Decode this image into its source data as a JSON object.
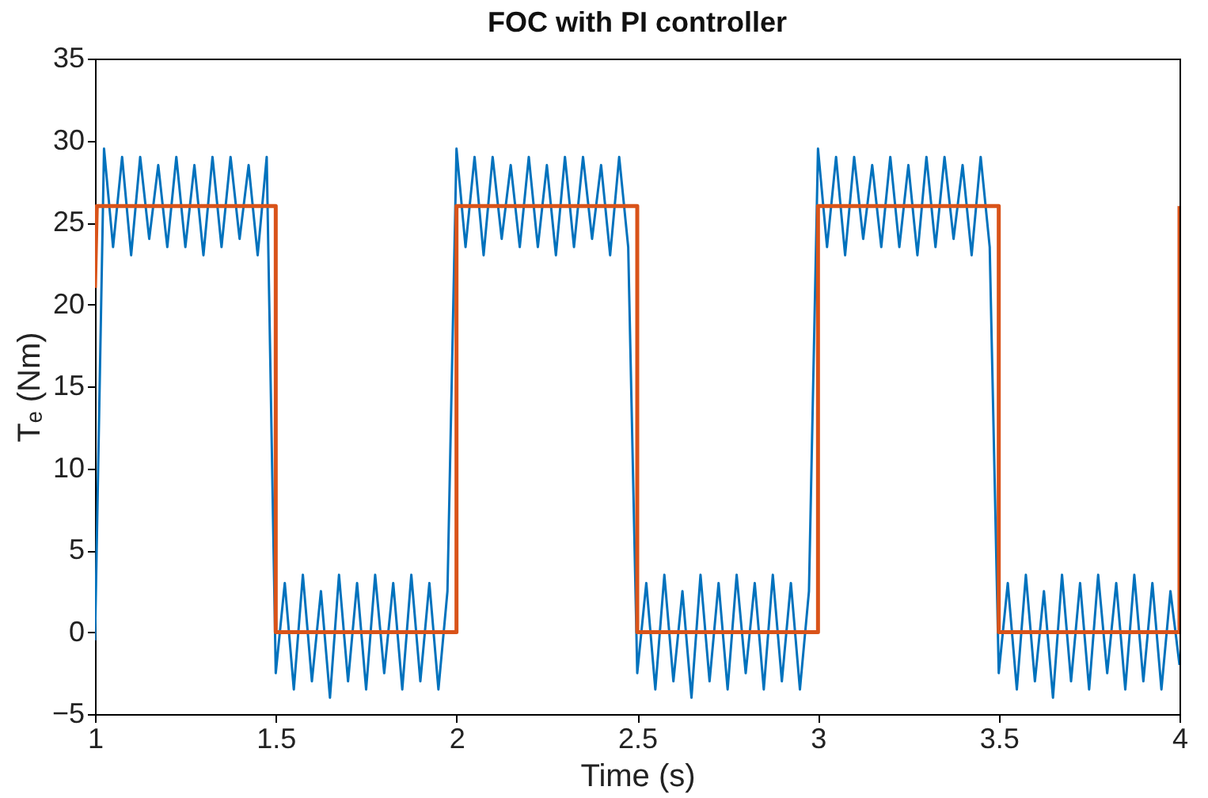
{
  "chart_data": {
    "type": "line",
    "title": "FOC with PI controller",
    "xlabel": "Time (s)",
    "ylabel": "Tₑ (Nm)",
    "xlim": [
      1,
      4
    ],
    "xticks": [
      1,
      1.5,
      2,
      2.5,
      3,
      3.5,
      4
    ],
    "ylim": [
      -5,
      35
    ],
    "yticks": [
      -5,
      0,
      5,
      10,
      15,
      20,
      25,
      30,
      35
    ],
    "grid": false,
    "series": [
      {
        "color": "#0072bd",
        "x": [
          1,
          1.025,
          1.05,
          1.075,
          1.1,
          1.125,
          1.15,
          1.175,
          1.2,
          1.225,
          1.25,
          1.275,
          1.3,
          1.325,
          1.35,
          1.375,
          1.4,
          1.425,
          1.45,
          1.475,
          1.5,
          1.525,
          1.55,
          1.575,
          1.6,
          1.625,
          1.65,
          1.675,
          1.7,
          1.725,
          1.75,
          1.775,
          1.8,
          1.825,
          1.85,
          1.875,
          1.9,
          1.925,
          1.95,
          1.975,
          2,
          2.025,
          2.05,
          2.075,
          2.1,
          2.125,
          2.15,
          2.175,
          2.2,
          2.225,
          2.25,
          2.275,
          2.3,
          2.325,
          2.35,
          2.375,
          2.4,
          2.425,
          2.45,
          2.475,
          2.5,
          2.525,
          2.55,
          2.575,
          2.6,
          2.625,
          2.65,
          2.675,
          2.7,
          2.725,
          2.75,
          2.775,
          2.8,
          2.825,
          2.85,
          2.875,
          2.9,
          2.925,
          2.95,
          2.975,
          3,
          3.025,
          3.05,
          3.075,
          3.1,
          3.125,
          3.15,
          3.175,
          3.2,
          3.225,
          3.25,
          3.275,
          3.3,
          3.325,
          3.35,
          3.375,
          3.4,
          3.425,
          3.45,
          3.475,
          3.5,
          3.525,
          3.55,
          3.575,
          3.6,
          3.625,
          3.65,
          3.675,
          3.7,
          3.725,
          3.75,
          3.775,
          3.8,
          3.825,
          3.85,
          3.875,
          3.9,
          3.925,
          3.95,
          3.975,
          4
        ],
        "values": [
          -0.5,
          29.5,
          23.5,
          29,
          23,
          29,
          24,
          28.5,
          23.5,
          29,
          23.5,
          28.5,
          23,
          29,
          23.5,
          29,
          24,
          28.5,
          23,
          29,
          -2.5,
          3,
          -3.5,
          3.5,
          -3,
          2.5,
          -4,
          3.5,
          -3,
          3,
          -3.5,
          3.5,
          -2.5,
          3,
          -3.5,
          3.5,
          -3,
          3,
          -3.5,
          2.5,
          29.5,
          23.5,
          29,
          23,
          29,
          24,
          28.5,
          23.5,
          29,
          23.5,
          28.5,
          23,
          29,
          23.5,
          29,
          24,
          28.5,
          23,
          29,
          23.5,
          -2.5,
          3,
          -3.5,
          3.5,
          -3,
          2.5,
          -4,
          3.5,
          -3,
          3,
          -3.5,
          3.5,
          -2.5,
          3,
          -3.5,
          3.5,
          -3,
          3,
          -3.5,
          2.5,
          29.5,
          23.5,
          29,
          23,
          29,
          24,
          28.5,
          23.5,
          29,
          23.5,
          28.5,
          23,
          29,
          23.5,
          29,
          24,
          28.5,
          23,
          29,
          23.5,
          -2.5,
          3,
          -3.5,
          3.5,
          -3,
          2.5,
          -4,
          3.5,
          -3,
          3,
          -3.5,
          3.5,
          -2.5,
          3,
          -3.5,
          3.5,
          -3,
          3,
          -3.5,
          2.5,
          -2
        ]
      },
      {
        "color": "#d95319",
        "x": [
          1,
          1.005,
          1.5,
          1.5,
          2,
          2,
          2.5,
          2.5,
          3,
          3,
          3.5,
          3.5,
          4,
          4
        ],
        "values": [
          21,
          26,
          26,
          0,
          0,
          26,
          26,
          0,
          0,
          26,
          26,
          0,
          0,
          26
        ]
      }
    ]
  }
}
